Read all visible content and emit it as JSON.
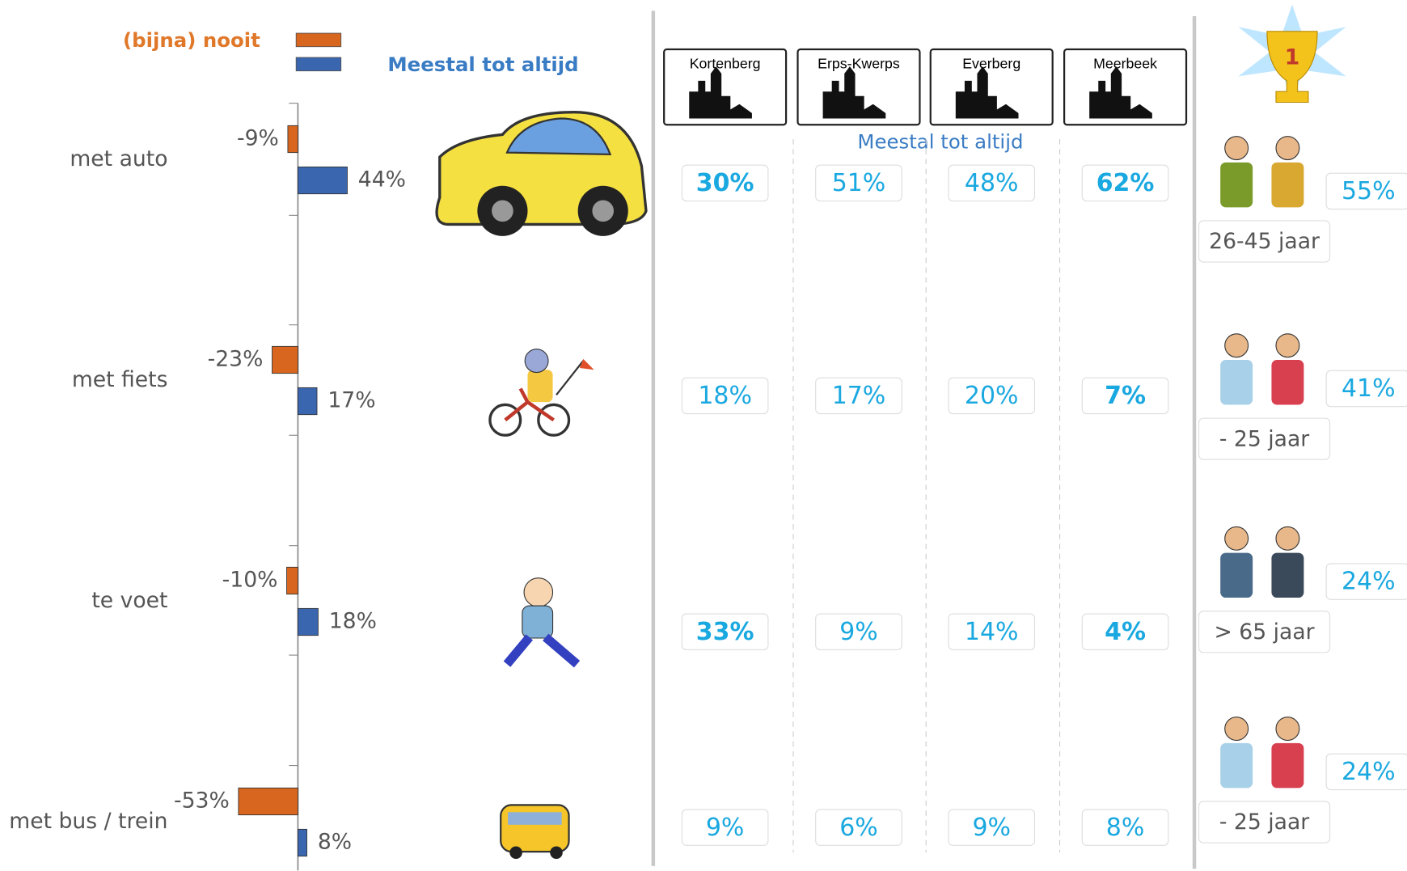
{
  "chart_data": {
    "type": "bar",
    "categories": [
      "met auto",
      "met fiets",
      "te voet",
      "met bus / trein"
    ],
    "series": [
      {
        "name": "(bijna)  nooit",
        "color": "#d8661f",
        "values": [
          -9,
          -23,
          -10,
          -53
        ],
        "value_labels": [
          "-9%",
          "-23%",
          "-10%",
          "-53%"
        ]
      },
      {
        "name": "Meestal tot altijd",
        "color": "#3a66b0",
        "values": [
          44,
          17,
          18,
          8
        ],
        "value_labels": [
          "44%",
          "17%",
          "18%",
          "8%"
        ]
      }
    ]
  },
  "towns": {
    "subtitle": "Meestal tot altijd",
    "columns": [
      {
        "name": "Kortenberg",
        "cells": [
          {
            "text": "30%",
            "bold": true
          },
          {
            "text": "18%",
            "bold": false
          },
          {
            "text": "33%",
            "bold": true
          },
          {
            "text": "9%",
            "bold": false
          }
        ]
      },
      {
        "name": "Erps-Kwerps",
        "cells": [
          {
            "text": "51%",
            "bold": false
          },
          {
            "text": "17%",
            "bold": false
          },
          {
            "text": "9%",
            "bold": false
          },
          {
            "text": "6%",
            "bold": false
          }
        ]
      },
      {
        "name": "Everberg",
        "cells": [
          {
            "text": "48%",
            "bold": false
          },
          {
            "text": "20%",
            "bold": false
          },
          {
            "text": "14%",
            "bold": false
          },
          {
            "text": "9%",
            "bold": false
          }
        ]
      },
      {
        "name": "Meerbeek",
        "cells": [
          {
            "text": "62%",
            "bold": true
          },
          {
            "text": "7%",
            "bold": true
          },
          {
            "text": "4%",
            "bold": true
          },
          {
            "text": "8%",
            "bold": false
          }
        ]
      }
    ]
  },
  "winners": [
    {
      "value": "55%",
      "age": "26-45 jaar"
    },
    {
      "value": "41%",
      "age": "- 25 jaar"
    },
    {
      "value": "24%",
      "age": "> 65 jaar"
    },
    {
      "value": "24%",
      "age": "- 25 jaar"
    }
  ]
}
